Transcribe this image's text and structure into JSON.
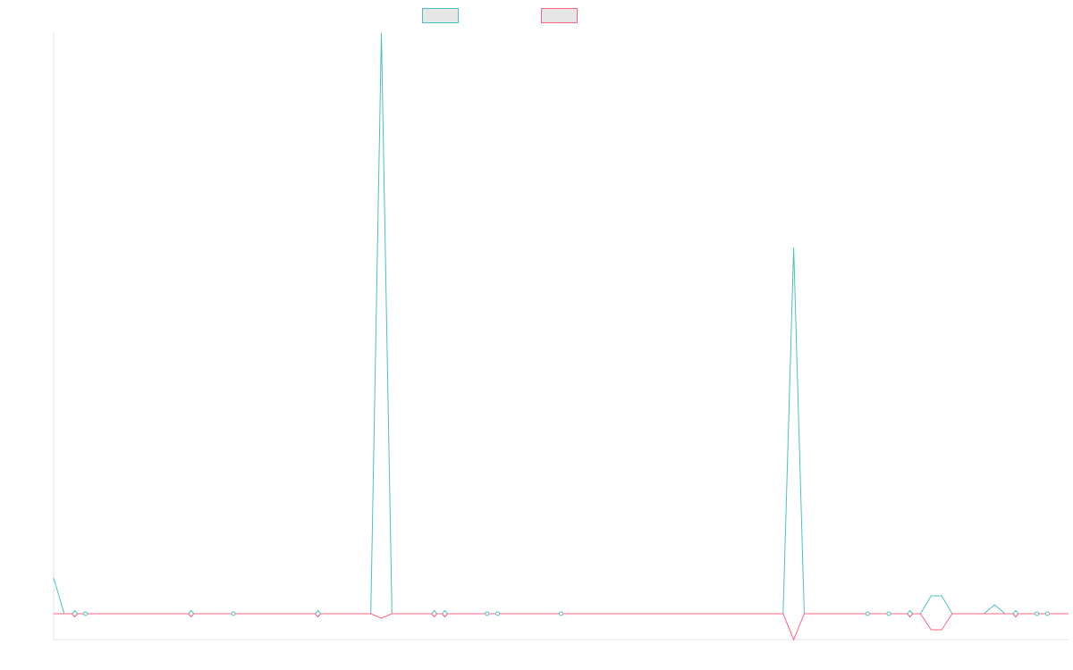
{
  "chart_data": {
    "type": "line",
    "title": "",
    "xlabel": "",
    "ylabel": "",
    "grid": false,
    "legend_position": "top-center",
    "point_count": 97,
    "ylim": [
      -29,
      650
    ],
    "series": [
      {
        "color": "#4bc0c0",
        "fill": "#e6e6e6",
        "spikes": [
          [
            0,
            40
          ],
          [
            31,
            650
          ],
          [
            70,
            410
          ],
          [
            83,
            20
          ],
          [
            84,
            20
          ],
          [
            89,
            10
          ]
        ]
      },
      {
        "color": "#ff6384",
        "fill": "#e6e6e6",
        "spikes": [
          [
            31,
            -5
          ],
          [
            70,
            -29
          ],
          [
            83,
            -18
          ],
          [
            84,
            -18
          ]
        ]
      }
    ],
    "markers": {
      "diamonds": [
        2,
        13,
        25,
        36,
        37,
        81,
        91
      ],
      "dots": [
        3,
        17,
        41,
        42,
        48,
        77,
        79,
        93,
        94
      ]
    }
  }
}
